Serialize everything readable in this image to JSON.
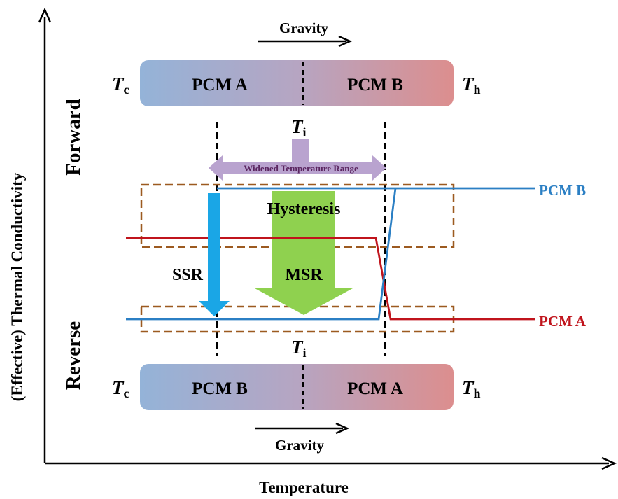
{
  "axes": {
    "x_label": "Temperature",
    "y_label": "(Effective) Thermal Conductivity"
  },
  "forward": {
    "side_label": "Forward",
    "gravity_label": "Gravity",
    "left_temp": "T",
    "left_temp_sub": "c",
    "right_temp": "T",
    "right_temp_sub": "h",
    "left_block": "PCM A",
    "right_block": "PCM B",
    "interface_temp": "T",
    "interface_temp_sub": "i"
  },
  "reverse": {
    "side_label": "Reverse",
    "gravity_label": "Gravity",
    "left_temp": "T",
    "left_temp_sub": "c",
    "right_temp": "T",
    "right_temp_sub": "h",
    "left_block": "PCM B",
    "right_block": "PCM A",
    "interface_temp": "T",
    "interface_temp_sub": "i"
  },
  "annotations": {
    "widened_range": "Widened Temperature Range",
    "hysteresis": "Hysteresis",
    "ssr": "SSR",
    "msr": "MSR"
  },
  "curves": {
    "pcm_b_label": "PCM B",
    "pcm_a_label": "PCM A"
  },
  "colors": {
    "block_cold": "#94b3d8",
    "block_hot": "#dc8e8e",
    "pcm_b_line": "#2b7fc4",
    "pcm_a_line": "#c0141c",
    "hysteresis_box": "#9c5a20",
    "range_arrow": "#b9a3cf",
    "ssr_arrow": "#1aa6e6",
    "msr_arrow": "#8fd14f"
  }
}
